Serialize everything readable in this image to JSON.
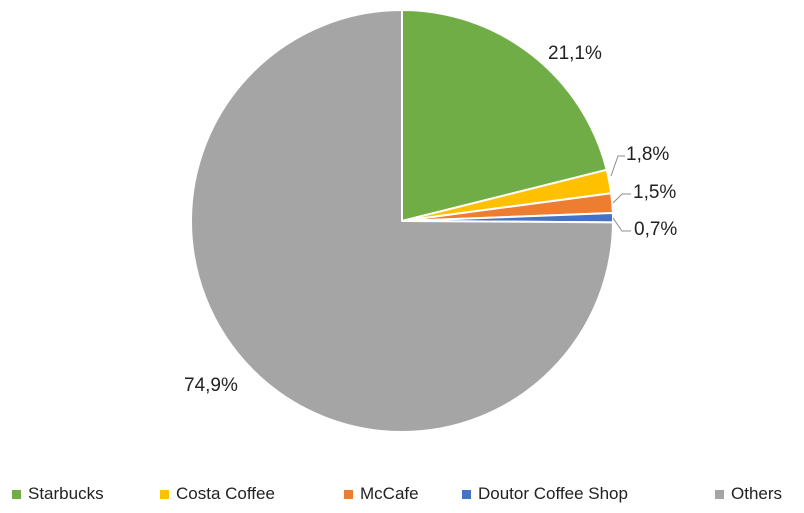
{
  "chart_data": {
    "type": "pie",
    "title": "",
    "series": [
      {
        "name": "Starbucks",
        "value": 21.1,
        "label": "21,1%",
        "color": "#70ad47"
      },
      {
        "name": "Costa Coffee",
        "value": 1.8,
        "label": "1,8%",
        "color": "#ffc000"
      },
      {
        "name": "McCafe",
        "value": 1.5,
        "label": "1,5%",
        "color": "#ed7d31"
      },
      {
        "name": "Doutor Coffee Shop",
        "value": 0.7,
        "label": "0,7%",
        "color": "#4472c4"
      },
      {
        "name": "Others",
        "value": 74.9,
        "label": "74,9%",
        "color": "#a5a5a5"
      }
    ],
    "start_angle": "12 o'clock",
    "direction": "clockwise",
    "legend_position": "bottom",
    "data_labels": "outside with leader lines"
  }
}
